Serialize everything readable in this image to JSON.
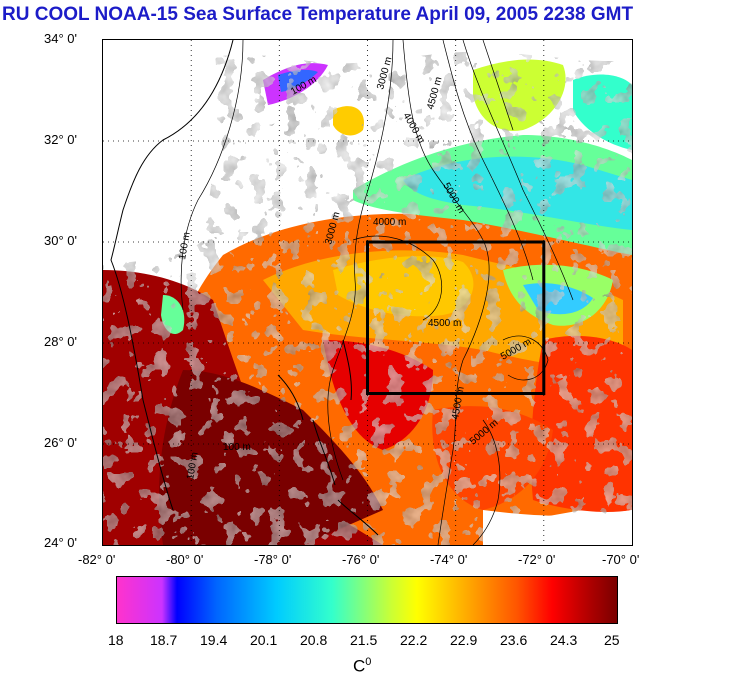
{
  "title": "RU COOL  NOAA-15 Sea Surface Temperature April 09, 2005 2238 GMT",
  "lat_labels": [
    "34° 0'",
    "32° 0'",
    "30° 0'",
    "28° 0'",
    "26° 0'",
    "24° 0'"
  ],
  "lon_labels": [
    "-82° 0'",
    "-80° 0'",
    "-78° 0'",
    "-76° 0'",
    "-74° 0'",
    "-72° 0'",
    "-70° 0'"
  ],
  "contour_labels": {
    "c100a": "100 m",
    "c100b": "100 m",
    "c100c": "100 m",
    "c100d": "100 m",
    "c3000a": "3000 m",
    "c3000b": "3000 m",
    "c4000a": "4000 m",
    "c4000b": "4000 m",
    "c4500a": "4500 m",
    "c4500b": "4500 m",
    "c4500c": "4500 m",
    "c5000a": "5000 m",
    "c5000b": "5000 m",
    "c5000c": "5000 m"
  },
  "colorbar": {
    "ticks": [
      "18",
      "18.7",
      "19.4",
      "20.1",
      "20.8",
      "21.5",
      "22.2",
      "22.9",
      "23.6",
      "24.3",
      "25"
    ],
    "unit": "C",
    "unit_sup": "0",
    "min": 18,
    "max": 25
  },
  "study_box": {
    "lon_min": -76,
    "lon_max": -72,
    "lat_min": 27,
    "lat_max": 30
  },
  "map_extent": {
    "lon_min": -82,
    "lon_max": -70,
    "lat_min": 24,
    "lat_max": 34
  }
}
